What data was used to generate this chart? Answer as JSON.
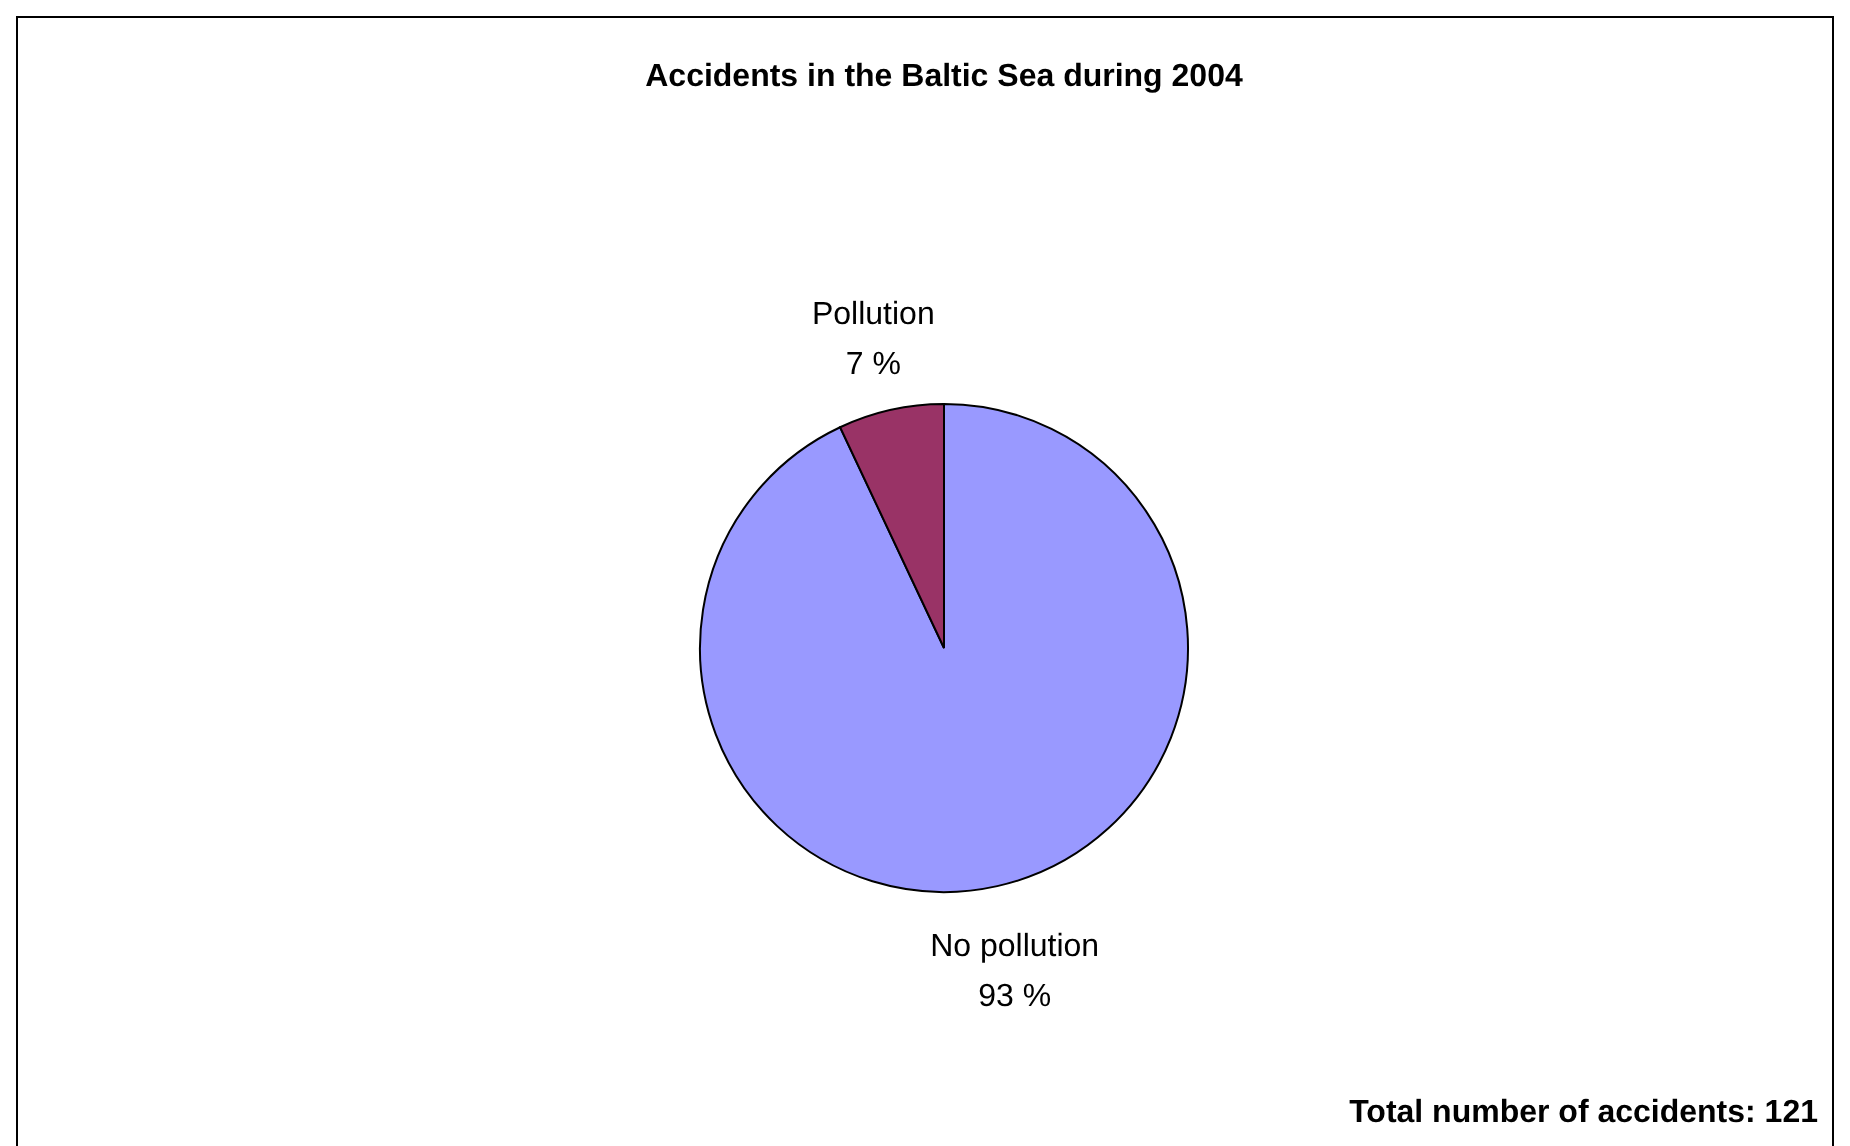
{
  "chart_data": {
    "type": "pie",
    "title": "Accidents in the Baltic Sea during 2004",
    "categories": [
      "No pollution",
      "Pollution"
    ],
    "values": [
      93,
      7
    ],
    "value_labels": [
      "93 %",
      "7 %"
    ],
    "colors": [
      "#9999ff",
      "#993366"
    ],
    "annotations": [
      "Total number of accidents: 121"
    ]
  }
}
